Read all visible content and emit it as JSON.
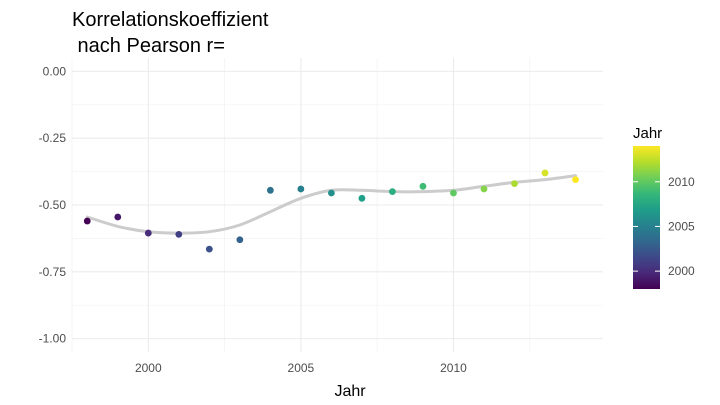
{
  "chart_data": {
    "type": "scatter",
    "title_lines": [
      "Korrelationskoeffizient",
      " nach Pearson r="
    ],
    "xlabel": "Jahr",
    "ylabel": "",
    "xlim": [
      1997.5,
      2014.9
    ],
    "ylim": [
      -1.05,
      0.05
    ],
    "x_ticks": [
      2000,
      2005,
      2010
    ],
    "x_tick_labels": [
      "2000",
      "2005",
      "2010"
    ],
    "y_ticks": [
      0.0,
      -0.25,
      -0.5,
      -0.75,
      -1.0
    ],
    "y_tick_labels": [
      "0.00",
      "-0.25",
      "-0.50",
      "-0.75",
      "-1.00"
    ],
    "grid": true,
    "points": [
      {
        "x": 1998,
        "y": -0.56
      },
      {
        "x": 1999,
        "y": -0.545
      },
      {
        "x": 2000,
        "y": -0.605
      },
      {
        "x": 2001,
        "y": -0.61
      },
      {
        "x": 2002,
        "y": -0.665
      },
      {
        "x": 2003,
        "y": -0.63
      },
      {
        "x": 2004,
        "y": -0.445
      },
      {
        "x": 2005,
        "y": -0.44
      },
      {
        "x": 2006,
        "y": -0.455
      },
      {
        "x": 2007,
        "y": -0.475
      },
      {
        "x": 2008,
        "y": -0.45
      },
      {
        "x": 2009,
        "y": -0.43
      },
      {
        "x": 2010,
        "y": -0.455
      },
      {
        "x": 2011,
        "y": -0.44
      },
      {
        "x": 2012,
        "y": -0.42
      },
      {
        "x": 2013,
        "y": -0.38
      },
      {
        "x": 2014,
        "y": -0.405
      }
    ],
    "smooth_line": {
      "color": "#cccccc",
      "x": [
        1998,
        1999,
        2000,
        2001,
        2002,
        2003,
        2004,
        2005,
        2006,
        2007,
        2008,
        2009,
        2010,
        2011,
        2012,
        2013,
        2014
      ],
      "y": [
        -0.545,
        -0.58,
        -0.6,
        -0.605,
        -0.6,
        -0.575,
        -0.525,
        -0.475,
        -0.445,
        -0.445,
        -0.45,
        -0.45,
        -0.445,
        -0.43,
        -0.415,
        -0.405,
        -0.39
      ]
    },
    "legend": {
      "title": "Jahr",
      "position": "right",
      "color_scale": "viridis",
      "range": [
        1998,
        2014
      ],
      "ticks": [
        2000,
        2005,
        2010
      ],
      "tick_labels": [
        "2000",
        "2005",
        "2010"
      ]
    }
  }
}
